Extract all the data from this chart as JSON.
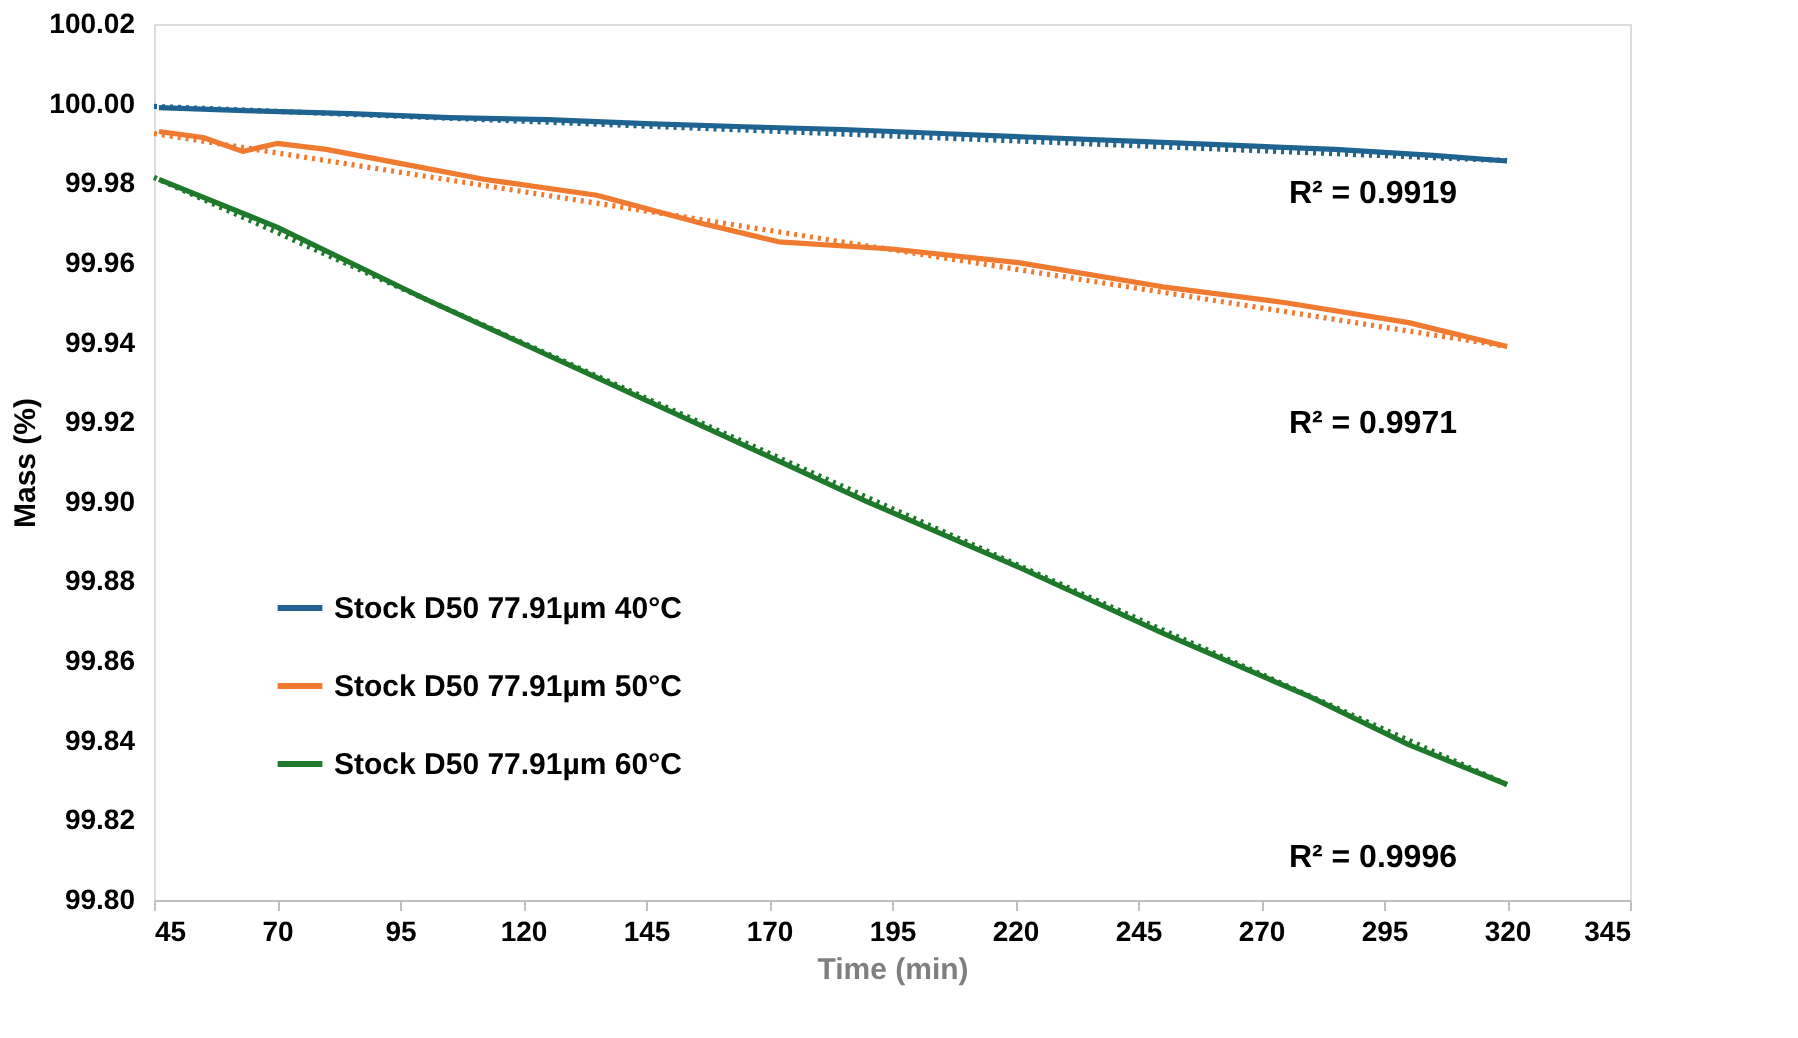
{
  "chart_data": {
    "type": "line",
    "xlabel": "Time (min)",
    "ylabel": "Mass (%)",
    "xlim": [
      45,
      345
    ],
    "xticks": [
      45,
      70,
      95,
      120,
      145,
      170,
      195,
      220,
      245,
      270,
      295,
      320,
      345
    ],
    "ylim": [
      99.8,
      100.02
    ],
    "yticks": [
      {
        "value": 99.8,
        "label": "99.80"
      },
      99.82,
      99.84,
      99.86,
      99.88,
      {
        "value": 99.9,
        "label": "99.90"
      },
      99.92,
      99.94,
      99.96,
      99.98,
      {
        "value": 100,
        "label": "100.00"
      },
      100.02
    ],
    "grid": false,
    "legend": "bottom left",
    "marker": "none",
    "series": [
      {
        "name": "Stock D50 77.91µm 40°C",
        "color": "#1f6390",
        "x": [
          46,
          65,
          85,
          105,
          125,
          145,
          165,
          185,
          205,
          225,
          245,
          265,
          285,
          305,
          320
        ],
        "values": [
          99.999,
          99.9982,
          99.9975,
          99.9965,
          99.996,
          99.995,
          99.9942,
          99.9935,
          99.9925,
          99.9915,
          99.9905,
          99.9895,
          99.9885,
          99.987,
          99.9856
        ]
      },
      {
        "name": "Stock D50 77.91µm 50°C",
        "color": "#f07a30",
        "x": [
          46,
          55,
          63,
          70,
          80,
          95,
          112,
          135,
          156,
          172,
          195,
          221,
          250,
          275,
          300,
          320
        ],
        "values": [
          99.993,
          99.9915,
          99.988,
          99.99,
          99.9885,
          99.985,
          99.981,
          99.977,
          99.97,
          99.9653,
          99.9635,
          99.96,
          99.954,
          99.95,
          99.945,
          99.939
        ]
      },
      {
        "name": "Stock D50 77.91µm 60°C",
        "color": "#1e7a2a",
        "x": [
          46,
          70,
          100,
          130,
          160,
          190,
          220,
          250,
          280,
          300,
          320
        ],
        "values": [
          99.981,
          99.969,
          99.951,
          99.934,
          99.917,
          99.9,
          99.884,
          99.867,
          99.851,
          99.839,
          99.829
        ]
      },
      {
        "type": "line",
        "line_style": "dotted",
        "color": "#1f6390",
        "x": [
          45,
          320
        ],
        "values": [
          99.9993,
          99.9857
        ]
      },
      {
        "type": "line",
        "line_style": "dotted",
        "color": "#f07a30",
        "x": [
          45,
          320
        ],
        "values": [
          99.9925,
          99.939
        ]
      },
      {
        "type": "line",
        "line_style": "dotted",
        "color": "#1e7a2a",
        "x": [
          45,
          320
        ],
        "values": [
          99.9815,
          99.829
        ]
      }
    ],
    "annotations": [
      "R² = 0.9919",
      "R² = 0.9971",
      "R² = 0.9996"
    ]
  }
}
